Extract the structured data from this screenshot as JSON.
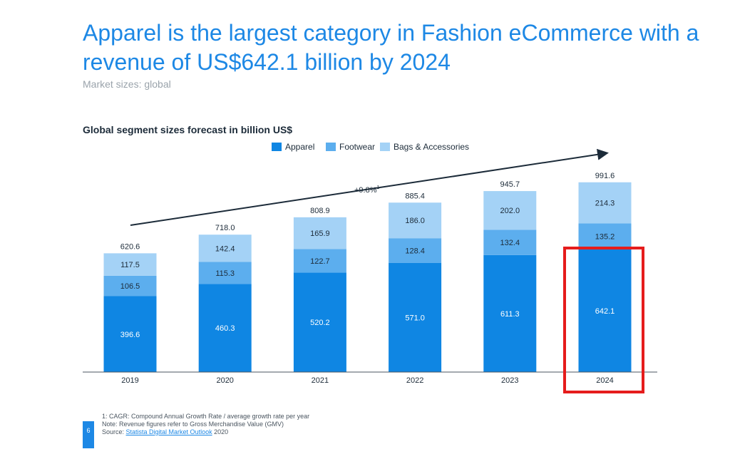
{
  "header": {
    "title": "Apparel is the largest category in Fashion eCommerce with a revenue of US$642.1 billion by 2024",
    "subtitle": "Market sizes: global"
  },
  "footnotes": {
    "note1": "1: CAGR: Compound Annual Growth Rate / average growth rate per year",
    "note2": "Note: Revenue figures refer to Gross Merchandise Value (GMV)",
    "source_prefix": "Source: ",
    "source_link": "Statista Digital Market Outlook",
    "source_suffix": " 2020"
  },
  "page_number": "6",
  "colors": {
    "apparel": "#0f86e3",
    "footwear": "#5caeee",
    "bags": "#a4d2f6",
    "title": "#1d88e5",
    "highlight": "#e51c1c"
  },
  "chart_data": {
    "type": "bar",
    "stacked": true,
    "title": "Global segment sizes forecast in billion US$",
    "categories": [
      "2019",
      "2020",
      "2021",
      "2022",
      "2023",
      "2024"
    ],
    "series": [
      {
        "name": "Apparel",
        "values": [
          396.6,
          460.3,
          520.2,
          571.0,
          611.3,
          642.1
        ]
      },
      {
        "name": "Footwear",
        "values": [
          106.5,
          115.3,
          122.7,
          128.4,
          132.4,
          135.2
        ]
      },
      {
        "name": "Bags & Accessories",
        "values": [
          117.5,
          142.4,
          165.9,
          186.0,
          202.0,
          214.3
        ]
      }
    ],
    "totals": [
      "620.6",
      "718.0",
      "808.9",
      "885.4",
      "945.7",
      "991.6"
    ],
    "value_labels": [
      [
        "396.6",
        "460.3",
        "520.2",
        "571.0",
        "611.3",
        "642.1"
      ],
      [
        "106.5",
        "115.3",
        "122.7",
        "128.4",
        "132.4",
        "135.2"
      ],
      [
        "117.5",
        "142.4",
        "165.9",
        "186.0",
        "202.0",
        "214.3"
      ]
    ],
    "annotation": {
      "text": "+9.8%",
      "superscript": "1"
    },
    "ylim": [
      0,
      1000
    ],
    "grid": false,
    "legend": "top-center",
    "highlighted_category": "2024"
  }
}
